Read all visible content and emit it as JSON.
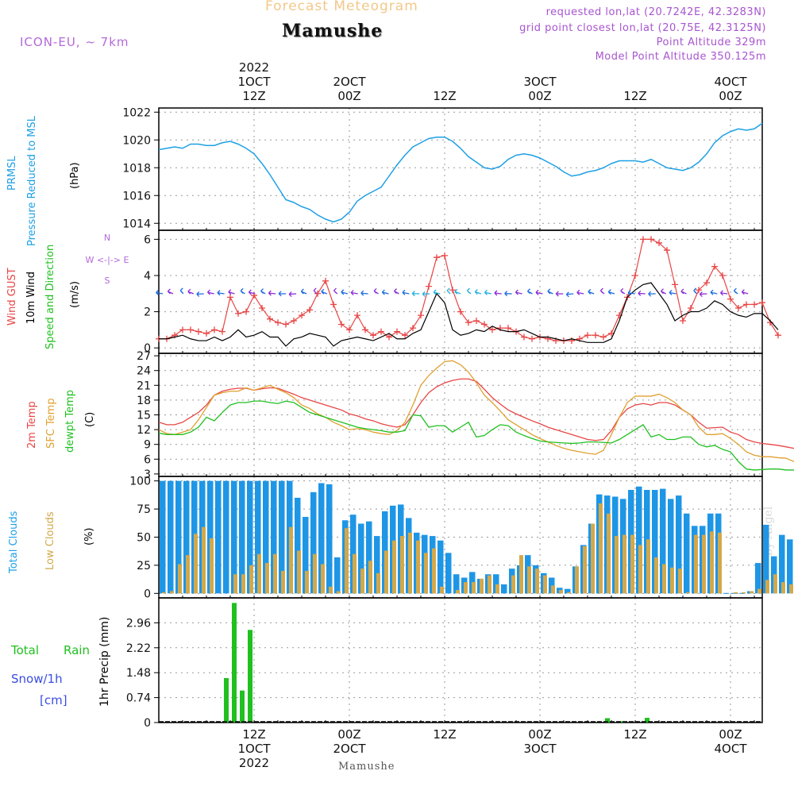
{
  "header": {
    "top_title": "Forecast Meteogram",
    "station": "Mamushe",
    "model": "ICON-EU, ~ 7km",
    "requested": "requested lon,lat (20.7242E, 42.3283N)",
    "grid_point": "grid point closest lon,lat (20.75E, 42.3125N)",
    "point_altitude": "Point Altitude 329m",
    "model_altitude": "Model Point Altitude 350.125m",
    "bottom_station": "Mamushe",
    "watermark": "by Angel"
  },
  "time_axis": {
    "top_labels": [
      {
        "t": 12,
        "lines": [
          "2022",
          "1OCT",
          "12Z"
        ]
      },
      {
        "t": 24,
        "lines": [
          "2OCT",
          "00Z"
        ]
      },
      {
        "t": 36,
        "lines": [
          "12Z"
        ]
      },
      {
        "t": 48,
        "lines": [
          "3OCT",
          "00Z"
        ]
      },
      {
        "t": 60,
        "lines": [
          "12Z"
        ]
      },
      {
        "t": 72,
        "lines": [
          "4OCT",
          "00Z"
        ]
      }
    ],
    "bottom_labels": [
      {
        "t": 12,
        "lines": [
          "12Z",
          "1OCT",
          "2022"
        ]
      },
      {
        "t": 24,
        "lines": [
          "00Z",
          "2OCT"
        ]
      },
      {
        "t": 36,
        "lines": [
          "12Z"
        ]
      },
      {
        "t": 48,
        "lines": [
          "00Z",
          "3OCT"
        ]
      },
      {
        "t": 60,
        "lines": [
          "12Z"
        ]
      },
      {
        "t": 72,
        "lines": [
          "00Z",
          "4OCT"
        ]
      }
    ]
  },
  "panel_labels": {
    "pressure": [
      "PRMSL",
      "Pressure Reduced to MSL",
      "(hPa)"
    ],
    "wind": [
      "Wind GUST",
      "10m Wind",
      "Speed and Direction",
      "(m/s)"
    ],
    "compass": [
      "N",
      "S",
      "W <-|-> E"
    ],
    "temp": [
      "2m Temp",
      "SFC Temp",
      "dewpt Temp",
      "(C)"
    ],
    "clouds": [
      "Total Clouds",
      "Low Clouds",
      "(%)"
    ],
    "precip": [
      "Total",
      "Rain",
      "Snow/1h",
      "[cm]",
      "1hr Precip (mm)"
    ]
  },
  "colors": {
    "pressure": "#1ea0e6",
    "gust": "#e84545",
    "wind": "#000000",
    "t2m": "#e84545",
    "sfc": "#e0a030",
    "dew": "#20c020",
    "total_clouds": "#1e96e6",
    "low_clouds": "#d2a84a",
    "rain": "#20c020",
    "snow": "#3a4ee0",
    "barb_a": "#1a6ae0",
    "barb_b": "#8a2ad8",
    "barb_c": "#20b0e0"
  },
  "chart_data": [
    {
      "type": "line",
      "name": "pressure",
      "title": "PRMSL Pressure Reduced to MSL",
      "ylabel": "(hPa)",
      "ylim": [
        1013.5,
        1022.3
      ],
      "yticks": [
        1014,
        1016,
        1018,
        1020,
        1022
      ],
      "xlim": [
        0,
        76
      ],
      "series": [
        {
          "name": "PRMSL",
          "values": [
            1019.3,
            1019.4,
            1019.5,
            1019.4,
            1019.7,
            1019.7,
            1019.6,
            1019.6,
            1019.8,
            1019.9,
            1019.7,
            1019.4,
            1019.0,
            1018.3,
            1017.5,
            1016.6,
            1015.7,
            1015.5,
            1015.2,
            1015.0,
            1014.6,
            1014.3,
            1014.1,
            1014.3,
            1014.8,
            1015.6,
            1016.0,
            1016.3,
            1016.6,
            1017.4,
            1018.2,
            1018.9,
            1019.5,
            1019.8,
            1020.1,
            1020.2,
            1020.2,
            1019.9,
            1019.4,
            1018.8,
            1018.4,
            1018.0,
            1017.9,
            1018.1,
            1018.6,
            1018.9,
            1019.0,
            1018.9,
            1018.7,
            1018.4,
            1018.1,
            1017.7,
            1017.4,
            1017.5,
            1017.7,
            1017.8,
            1018.0,
            1018.3,
            1018.5,
            1018.5,
            1018.5,
            1018.4,
            1018.6,
            1018.3,
            1018.0,
            1017.9,
            1017.8,
            1018.0,
            1018.4,
            1019.0,
            1019.8,
            1020.3,
            1020.6,
            1020.8,
            1020.7,
            1020.8,
            1021.2
          ]
        }
      ]
    },
    {
      "type": "line",
      "name": "wind",
      "title": "Wind GUST / 10m Wind Speed and Direction",
      "ylabel": "(m/s)",
      "ylim": [
        -0.3,
        6.5
      ],
      "yticks": [
        0,
        2,
        4,
        6
      ],
      "xlim": [
        0,
        76
      ],
      "series": [
        {
          "name": "Wind GUST",
          "values": [
            0.5,
            0.5,
            0.7,
            1.0,
            1.0,
            0.9,
            0.8,
            1.0,
            0.9,
            2.8,
            1.9,
            2.0,
            2.9,
            2.2,
            1.6,
            1.4,
            1.3,
            1.5,
            1.8,
            2.1,
            3.0,
            3.7,
            2.4,
            1.3,
            1.0,
            1.8,
            1.0,
            0.7,
            0.9,
            0.6,
            0.9,
            0.7,
            1.1,
            1.8,
            3.4,
            5.0,
            5.1,
            3.2,
            2.0,
            1.4,
            1.5,
            1.3,
            1.0,
            1.1,
            1.1,
            0.9,
            0.6,
            0.5,
            0.6,
            0.5,
            0.4,
            0.4,
            0.4,
            0.5,
            0.7,
            0.7,
            0.6,
            0.8,
            1.8,
            2.8,
            4.0,
            6.0,
            6.0,
            5.8,
            5.4,
            3.5,
            1.5,
            2.2,
            3.2,
            3.6,
            4.5,
            4.0,
            2.7,
            2.2,
            2.4,
            2.4,
            2.5,
            1.4,
            0.7
          ]
        },
        {
          "name": "10m Wind",
          "values": [
            0.5,
            0.5,
            0.6,
            0.7,
            0.5,
            0.4,
            0.4,
            0.6,
            0.4,
            0.6,
            1.0,
            0.6,
            0.7,
            0.9,
            0.6,
            0.6,
            0.1,
            0.5,
            0.6,
            0.8,
            0.7,
            0.6,
            0.1,
            0.4,
            0.5,
            0.6,
            0.5,
            0.4,
            0.6,
            0.8,
            0.5,
            0.5,
            0.8,
            1.0,
            2.0,
            3.0,
            2.5,
            1.0,
            0.7,
            0.8,
            1.0,
            0.9,
            1.2,
            1.0,
            0.9,
            0.9,
            1.0,
            0.8,
            0.6,
            0.6,
            0.5,
            0.4,
            0.5,
            0.4,
            0.3,
            0.3,
            0.3,
            0.5,
            1.5,
            2.8,
            3.2,
            3.5,
            3.6,
            3.0,
            2.4,
            1.5,
            1.8,
            2.0,
            2.0,
            2.2,
            2.6,
            2.4,
            2.0,
            1.8,
            1.7,
            1.9,
            1.9,
            1.5,
            1.0
          ]
        }
      ],
      "barbs": {
        "count": 58,
        "note": "wind direction arrows along top of panel"
      }
    },
    {
      "type": "line",
      "name": "temperature",
      "title": "2m Temp / SFC Temp / dewpt Temp",
      "ylabel": "(C)",
      "ylim": [
        2.5,
        27.5
      ],
      "yticks": [
        3,
        6,
        9,
        12,
        15,
        18,
        21,
        24,
        27
      ],
      "xlim": [
        0,
        76
      ],
      "series": [
        {
          "name": "2m Temp",
          "values": [
            13.5,
            13.0,
            13.0,
            13.5,
            14.5,
            15.5,
            17.0,
            19.0,
            19.8,
            20.2,
            20.4,
            20.4,
            20.0,
            20.3,
            20.5,
            20.4,
            19.8,
            19.2,
            18.5,
            18.0,
            17.5,
            17.0,
            16.5,
            16.0,
            15.2,
            14.8,
            14.2,
            13.8,
            13.2,
            12.8,
            12.5,
            13.0,
            15.0,
            17.5,
            19.5,
            20.7,
            21.5,
            22.0,
            22.3,
            22.3,
            21.8,
            20.2,
            18.5,
            17.2,
            16.0,
            15.2,
            14.5,
            13.8,
            13.2,
            12.5,
            12.0,
            11.5,
            11.0,
            10.5,
            10.0,
            9.8,
            10.0,
            11.8,
            14.5,
            16.2,
            17.0,
            17.3,
            17.0,
            17.5,
            17.5,
            17.0,
            16.0,
            15.0,
            13.5,
            12.3,
            12.4,
            12.5,
            11.5,
            11.0,
            10.0,
            9.5,
            9.2,
            9.0,
            8.8,
            8.5,
            8.2,
            7.7
          ]
        },
        {
          "name": "SFC Temp",
          "values": [
            12.0,
            11.2,
            11.0,
            11.5,
            12.0,
            14.0,
            16.5,
            19.0,
            19.5,
            19.8,
            19.8,
            20.5,
            20.0,
            20.5,
            21.0,
            20.2,
            19.5,
            18.5,
            17.0,
            16.3,
            15.2,
            14.5,
            13.5,
            12.8,
            12.0,
            12.2,
            12.0,
            11.5,
            11.2,
            11.0,
            11.8,
            13.5,
            17.0,
            21.0,
            23.0,
            24.5,
            25.8,
            26.0,
            25.2,
            23.7,
            21.5,
            19.0,
            17.5,
            15.8,
            14.0,
            13.0,
            12.0,
            11.0,
            10.2,
            9.5,
            8.8,
            8.2,
            7.8,
            7.5,
            7.2,
            7.0,
            7.8,
            11.0,
            14.5,
            17.5,
            18.8,
            18.8,
            18.8,
            19.2,
            18.5,
            17.5,
            16.0,
            15.0,
            12.5,
            11.0,
            11.0,
            11.2,
            10.2,
            9.0,
            7.5,
            6.8,
            6.5,
            6.5,
            6.3,
            6.2,
            5.5,
            5.0
          ]
        },
        {
          "name": "dewpt Temp",
          "values": [
            11.3,
            11.0,
            11.0,
            11.0,
            11.5,
            12.5,
            14.5,
            13.8,
            15.5,
            17.0,
            17.5,
            17.5,
            17.8,
            17.8,
            17.5,
            17.3,
            17.8,
            17.5,
            16.5,
            15.5,
            15.0,
            14.5,
            14.0,
            13.5,
            13.0,
            12.5,
            12.2,
            12.0,
            11.8,
            11.5,
            11.5,
            11.8,
            15.0,
            14.8,
            12.5,
            12.8,
            12.8,
            11.5,
            12.5,
            13.5,
            10.5,
            10.8,
            12.0,
            13.0,
            12.8,
            11.5,
            10.8,
            10.2,
            9.7,
            9.5,
            9.4,
            9.3,
            9.2,
            9.3,
            9.5,
            9.5,
            9.4,
            9.3,
            10.0,
            11.0,
            12.0,
            13.0,
            10.5,
            11.0,
            10.0,
            10.0,
            10.5,
            10.5,
            9.0,
            8.5,
            8.8,
            8.0,
            7.5,
            5.5,
            4.0,
            3.8,
            3.9,
            4.0,
            4.0,
            3.8,
            3.8,
            4.4
          ]
        }
      ]
    },
    {
      "type": "bar",
      "name": "clouds",
      "title": "Total Clouds / Low Clouds",
      "ylabel": "(%)",
      "ylim": [
        -4,
        104
      ],
      "yticks": [
        0,
        25,
        50,
        75,
        100
      ],
      "xlim": [
        0,
        76
      ],
      "series": [
        {
          "name": "Total Clouds",
          "values": [
            100,
            100,
            100,
            100,
            100,
            100,
            100,
            100,
            100,
            100,
            100,
            100,
            100,
            100,
            100,
            100,
            100,
            85,
            68,
            90,
            98,
            97,
            32,
            65,
            70,
            62,
            64,
            51,
            73,
            78,
            79,
            67,
            54,
            52,
            51,
            47,
            36,
            17,
            14,
            19,
            13,
            17,
            17,
            8,
            22,
            25,
            34,
            25,
            18,
            14,
            5,
            4,
            24,
            43,
            62,
            88,
            87,
            86,
            84,
            92,
            95,
            92,
            92,
            93,
            84,
            87,
            71,
            60,
            60,
            71,
            71,
            0,
            0,
            0,
            2,
            27,
            61,
            33,
            52,
            48,
            53
          ]
        },
        {
          "name": "Low Clouds",
          "values": [
            1,
            2,
            26,
            34,
            53,
            59,
            49,
            0,
            0,
            17,
            17,
            25,
            35,
            27,
            35,
            20,
            59,
            38,
            20,
            35,
            26,
            6,
            2,
            58,
            35,
            22,
            29,
            18,
            38,
            47,
            51,
            54,
            47,
            36,
            40,
            6,
            0,
            3,
            10,
            10,
            13,
            16,
            8,
            0,
            16,
            34,
            24,
            22,
            16,
            7,
            3,
            1,
            24,
            42,
            62,
            80,
            71,
            51,
            52,
            52,
            43,
            48,
            32,
            26,
            23,
            22,
            1,
            52,
            52,
            55,
            54,
            0,
            1,
            1,
            2,
            4,
            12,
            17,
            10,
            8,
            33
          ]
        }
      ]
    },
    {
      "type": "bar",
      "name": "precip",
      "title": "Total Rain / Snow/1h [cm]",
      "ylabel": "1hr Precip (mm)",
      "ylim": [
        0,
        3.7
      ],
      "yticks": [
        0,
        0.74,
        1.48,
        2.22,
        2.96
      ],
      "yticklabels": [
        "0",
        "0.74",
        "1.48",
        "2.22",
        "2.96"
      ],
      "xlim": [
        0,
        76
      ],
      "series": [
        {
          "name": "Total Rain",
          "points": [
            [
              8,
              1.32
            ],
            [
              9,
              3.55
            ],
            [
              10,
              0.95
            ],
            [
              11,
              2.75
            ],
            [
              56,
              0.13
            ],
            [
              58,
              0.04
            ],
            [
              61,
              0.14
            ]
          ]
        },
        {
          "name": "Snow/1h",
          "points": []
        }
      ]
    }
  ]
}
